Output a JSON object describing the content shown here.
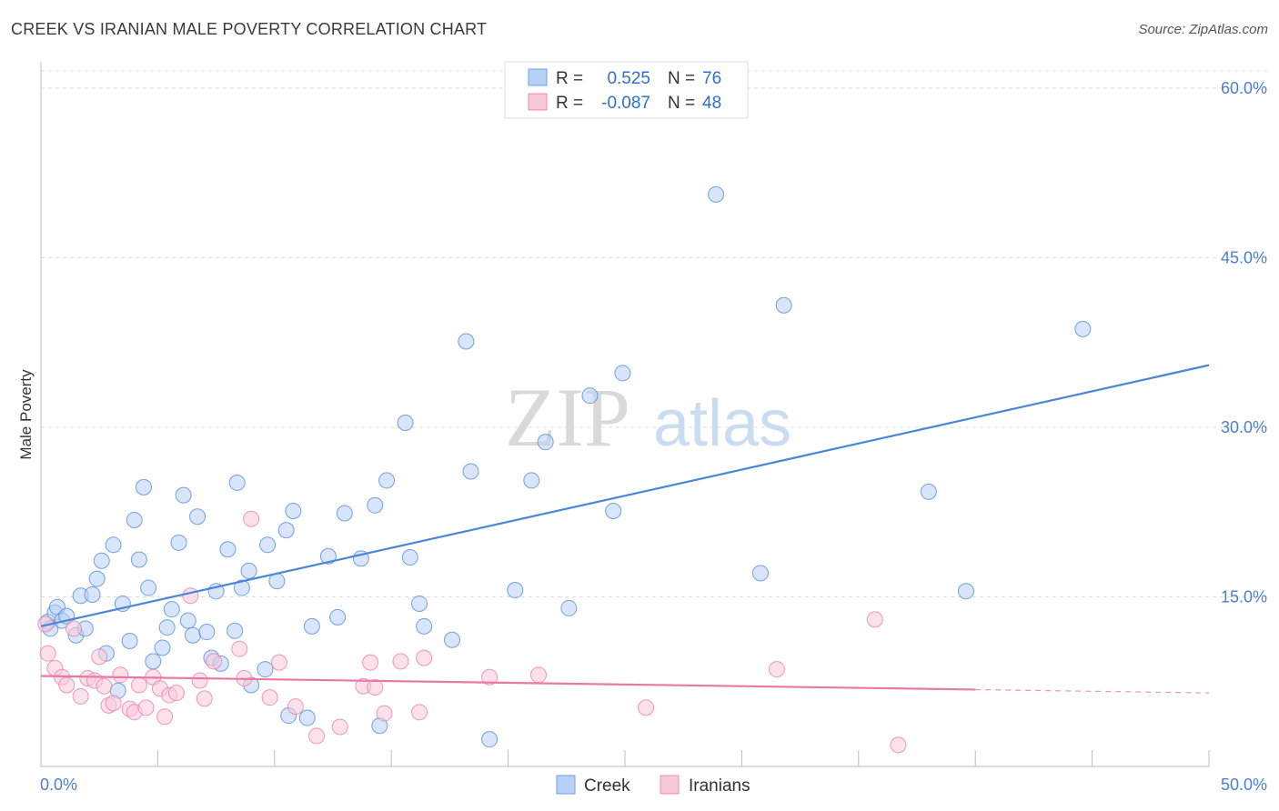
{
  "header": {
    "title": "CREEK VS IRANIAN MALE POVERTY CORRELATION CHART",
    "source": "Source: ZipAtlas.com"
  },
  "watermark": {
    "zip": "ZIP",
    "atlas": "atlas"
  },
  "legend_top": [
    {
      "r_label": "R =",
      "r_value": "0.525",
      "n_label": "N =",
      "n_value": "76",
      "color": "#6fa0e8",
      "fill": "#b8d0f5"
    },
    {
      "r_label": "R =",
      "r_value": "-0.087",
      "n_label": "N =",
      "n_value": "48",
      "color": "#ec8fb0",
      "fill": "#f9c9da"
    }
  ],
  "legend_bottom": [
    {
      "label": "Creek",
      "color": "#6fa0e8",
      "fill": "#b8d0f5"
    },
    {
      "label": "Iranians",
      "color": "#ec8fb0",
      "fill": "#f9c9da"
    }
  ],
  "chart_data": {
    "type": "scatter",
    "ylabel": "Male Poverty",
    "xlim": [
      0,
      50
    ],
    "ylim": [
      0,
      60
    ],
    "x_tick_labels": [
      "0.0%",
      "50.0%"
    ],
    "y_tick_labels": [
      {
        "value": 15,
        "label": "15.0%"
      },
      {
        "value": 30,
        "label": "30.0%"
      },
      {
        "value": 45,
        "label": "45.0%"
      },
      {
        "value": 60,
        "label": "60.0%"
      }
    ],
    "grid": true,
    "series": [
      {
        "name": "Creek",
        "color": "#4a86d8",
        "fill": "#b8d0f5",
        "trend": {
          "x": [
            0,
            50
          ],
          "y": [
            12.4,
            35.5
          ]
        },
        "points": [
          [
            0.3,
            12.8
          ],
          [
            0.4,
            12.2
          ],
          [
            0.6,
            13.6
          ],
          [
            0.7,
            14.1
          ],
          [
            0.9,
            12.9
          ],
          [
            1.1,
            13.3
          ],
          [
            1.5,
            11.6
          ],
          [
            1.7,
            15.1
          ],
          [
            1.9,
            12.2
          ],
          [
            2.2,
            15.2
          ],
          [
            2.4,
            16.6
          ],
          [
            2.6,
            18.2
          ],
          [
            2.8,
            10.0
          ],
          [
            3.1,
            19.6
          ],
          [
            3.3,
            6.7
          ],
          [
            3.5,
            14.4
          ],
          [
            3.8,
            11.1
          ],
          [
            4.0,
            21.8
          ],
          [
            4.2,
            18.3
          ],
          [
            4.4,
            24.7
          ],
          [
            4.6,
            15.8
          ],
          [
            4.8,
            9.3
          ],
          [
            5.2,
            10.5
          ],
          [
            5.4,
            12.3
          ],
          [
            5.6,
            13.9
          ],
          [
            5.9,
            19.8
          ],
          [
            6.1,
            24.0
          ],
          [
            6.3,
            12.9
          ],
          [
            6.5,
            11.6
          ],
          [
            6.7,
            22.1
          ],
          [
            7.1,
            11.9
          ],
          [
            7.3,
            9.6
          ],
          [
            7.5,
            15.5
          ],
          [
            7.7,
            9.1
          ],
          [
            8.0,
            19.2
          ],
          [
            8.3,
            12.0
          ],
          [
            8.4,
            25.1
          ],
          [
            8.6,
            15.8
          ],
          [
            8.9,
            17.3
          ],
          [
            9.0,
            7.2
          ],
          [
            9.6,
            8.6
          ],
          [
            9.7,
            19.6
          ],
          [
            10.1,
            16.4
          ],
          [
            10.5,
            20.9
          ],
          [
            10.6,
            4.5
          ],
          [
            10.8,
            22.6
          ],
          [
            11.4,
            4.3
          ],
          [
            11.6,
            12.4
          ],
          [
            12.3,
            18.6
          ],
          [
            12.7,
            13.2
          ],
          [
            13.0,
            22.4
          ],
          [
            13.7,
            18.4
          ],
          [
            14.3,
            23.1
          ],
          [
            14.5,
            3.6
          ],
          [
            14.8,
            25.3
          ],
          [
            15.6,
            30.4
          ],
          [
            15.8,
            18.5
          ],
          [
            16.2,
            14.4
          ],
          [
            16.4,
            12.4
          ],
          [
            17.6,
            11.2
          ],
          [
            18.2,
            37.6
          ],
          [
            18.4,
            26.1
          ],
          [
            19.2,
            2.4
          ],
          [
            20.3,
            15.6
          ],
          [
            21.0,
            25.3
          ],
          [
            21.6,
            28.7
          ],
          [
            22.6,
            14.0
          ],
          [
            23.5,
            32.8
          ],
          [
            24.5,
            22.6
          ],
          [
            24.9,
            34.8
          ],
          [
            28.9,
            50.6
          ],
          [
            30.8,
            17.1
          ],
          [
            31.8,
            40.8
          ],
          [
            38.0,
            24.3
          ],
          [
            39.6,
            15.5
          ],
          [
            44.6,
            38.7
          ]
        ]
      },
      {
        "name": "Iranians",
        "color": "#e879a0",
        "fill": "#f9c9da",
        "trend": {
          "x": [
            0,
            40
          ],
          "y": [
            8.0,
            6.8
          ]
        },
        "trend_dashed": {
          "x": [
            40,
            50
          ],
          "y": [
            6.8,
            6.5
          ]
        },
        "points": [
          [
            0.2,
            12.6
          ],
          [
            0.3,
            10.0
          ],
          [
            0.6,
            8.7
          ],
          [
            0.9,
            7.9
          ],
          [
            1.1,
            7.2
          ],
          [
            1.4,
            12.2
          ],
          [
            1.7,
            6.2
          ],
          [
            2.0,
            7.8
          ],
          [
            2.3,
            7.6
          ],
          [
            2.5,
            9.7
          ],
          [
            2.7,
            7.1
          ],
          [
            2.9,
            5.4
          ],
          [
            3.1,
            5.6
          ],
          [
            3.4,
            8.1
          ],
          [
            3.8,
            5.1
          ],
          [
            4.0,
            4.8
          ],
          [
            4.2,
            7.2
          ],
          [
            4.5,
            5.2
          ],
          [
            4.8,
            7.9
          ],
          [
            5.1,
            6.9
          ],
          [
            5.3,
            4.4
          ],
          [
            5.5,
            6.3
          ],
          [
            5.8,
            6.5
          ],
          [
            6.4,
            15.1
          ],
          [
            6.8,
            7.6
          ],
          [
            7.0,
            6.0
          ],
          [
            7.4,
            9.3
          ],
          [
            8.5,
            10.4
          ],
          [
            8.7,
            7.8
          ],
          [
            9.0,
            21.9
          ],
          [
            9.8,
            6.1
          ],
          [
            10.2,
            9.2
          ],
          [
            10.9,
            5.3
          ],
          [
            11.8,
            2.7
          ],
          [
            12.8,
            3.5
          ],
          [
            13.8,
            7.1
          ],
          [
            14.1,
            9.2
          ],
          [
            14.3,
            7.0
          ],
          [
            14.7,
            4.7
          ],
          [
            15.4,
            9.3
          ],
          [
            16.2,
            4.8
          ],
          [
            16.4,
            9.6
          ],
          [
            19.2,
            7.9
          ],
          [
            21.3,
            8.1
          ],
          [
            25.9,
            5.2
          ],
          [
            31.5,
            8.6
          ],
          [
            35.7,
            13.0
          ],
          [
            36.7,
            1.9
          ]
        ]
      }
    ]
  }
}
